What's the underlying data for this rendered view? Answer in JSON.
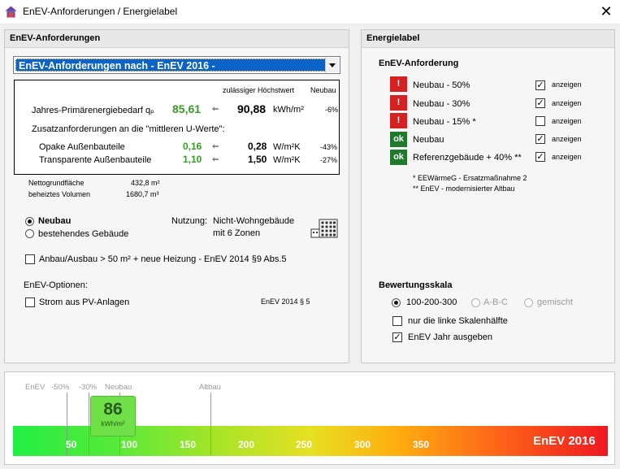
{
  "window": {
    "title": "EnEV-Anforderungen  /  Energielabel",
    "close_label": "✕"
  },
  "left": {
    "header": "EnEV-Anforderungen",
    "combo_value": "EnEV-Anforderungen nach  - EnEV 2016 -",
    "table": {
      "col_max": "zulässiger Höchstwert",
      "col_neubau": "Neubau",
      "primary": {
        "label": "Jahres-Primärenergiebedarf qₚ",
        "value": "85,61",
        "arrow": "⇐",
        "max": "90,88",
        "unit": "kWh/m²",
        "pct": "-6%"
      },
      "zusatz_label": "Zusatzanforderungen an die \"mittleren U-Werte\":",
      "rows": [
        {
          "label": "Opake Außenbauteile",
          "value": "0,16",
          "arrow": "⇐",
          "max": "0,28",
          "unit": "W/m²K",
          "pct": "-43%"
        },
        {
          "label": "Transparente Außenbauteile",
          "value": "1,10",
          "arrow": "⇐",
          "max": "1,50",
          "unit": "W/m²K",
          "pct": "-27%"
        }
      ]
    },
    "netto_label": "Nettogrundfläche",
    "netto_value": "432,8 m²",
    "volumen_label": "beheiztes Volumen",
    "volumen_value": "1680,7 m³",
    "radio_neubau": "Neubau",
    "radio_bestand": "bestehendes Gebäude",
    "nutzung_label": "Nutzung:",
    "nutzung_value1": "Nicht-Wohngebäude",
    "nutzung_value2": "mit 6 Zonen",
    "anbau_label": "Anbau/Ausbau > 50 m² + neue Heizung  - EnEV 2014 §9 Abs.5",
    "optionen_label": "EnEV-Optionen:",
    "strom_label": "Strom aus PV-Anlagen",
    "strom_ref": "EnEV 2014 § 5"
  },
  "right": {
    "header": "Energielabel",
    "req_title": "EnEV-Anforderung",
    "items": [
      {
        "badge": "!",
        "label": "Neubau - 50%",
        "checked": true,
        "show": "anzeigen"
      },
      {
        "badge": "!",
        "label": "Neubau - 30%",
        "checked": true,
        "show": "anzeigen"
      },
      {
        "badge": "!",
        "label": "Neubau - 15% *",
        "checked": false,
        "show": "anzeigen"
      },
      {
        "badge": "ok",
        "label": "Neubau",
        "checked": true,
        "show": "anzeigen"
      },
      {
        "badge": "ok",
        "label": "Referenzgebäude + 40% **",
        "checked": true,
        "show": "anzeigen"
      }
    ],
    "footnote1": "*   EEWärmeG - Ersatzmaßnahme 2",
    "footnote2": "** EnEV - modernisierter Altbau",
    "skala_title": "Bewertungsskala",
    "skala_opt1": "100-200-300",
    "skala_opt2": "A-B-C",
    "skala_opt3": "gemischt",
    "half_label": "nur die linke Skalenhälfte",
    "year_label": "EnEV Jahr ausgeben",
    "half_checked": false,
    "year_checked": true
  },
  "scale": {
    "ref_labels": [
      "EnEV",
      "-50%",
      "-30%",
      "Neubau",
      "Altbau"
    ],
    "ticks": [
      "50",
      "100",
      "150",
      "200",
      "250",
      "300",
      "350"
    ],
    "marker_value": "86",
    "marker_unit": "kWh/m²",
    "brand": "EnEV 2016",
    "colors": {
      "good": "#22ee44",
      "bad": "#f01820",
      "marker": "#6fe047"
    }
  }
}
